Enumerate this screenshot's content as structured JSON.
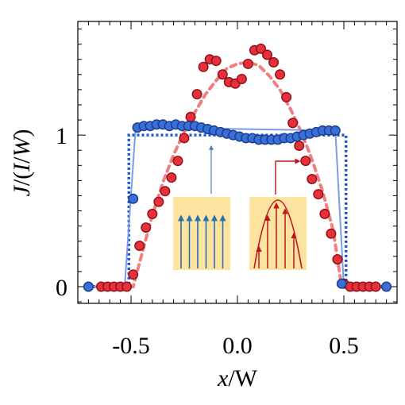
{
  "chart_data": {
    "type": "scatter",
    "xlabel": {
      "italic": "x",
      "rest": "/W"
    },
    "ylabel": {
      "italic_j": "J",
      "mid": "/(",
      "italic_i": "I",
      "slash": "/",
      "italic_w": "W",
      "end": ")"
    },
    "xlim": [
      -0.75,
      0.75
    ],
    "ylim": [
      -0.11,
      1.75
    ],
    "xticks": [
      -0.5,
      0.0,
      0.5
    ],
    "xtick_labels": [
      "-0.5",
      "0.0",
      "0.5"
    ],
    "yticks": [
      0,
      1
    ],
    "ytick_labels": [
      "0",
      "1"
    ],
    "grid": false,
    "series": [
      {
        "marker_color": "#3a6fd8",
        "fit_color": "#1f55d0",
        "fit_style": "dotted",
        "x": [
          -0.7,
          -0.49,
          -0.47,
          -0.44,
          -0.41,
          -0.38,
          -0.35,
          -0.32,
          -0.29,
          -0.26,
          -0.23,
          -0.2,
          -0.17,
          -0.14,
          -0.11,
          -0.08,
          -0.05,
          -0.02,
          0.01,
          0.04,
          0.07,
          0.1,
          0.13,
          0.16,
          0.19,
          0.22,
          0.25,
          0.28,
          0.31,
          0.34,
          0.37,
          0.4,
          0.43,
          0.46,
          0.49,
          0.7
        ],
        "y": [
          0.0,
          0.58,
          1.05,
          1.06,
          1.06,
          1.07,
          1.07,
          1.06,
          1.07,
          1.06,
          1.06,
          1.06,
          1.05,
          1.04,
          1.03,
          1.02,
          1.01,
          1.0,
          0.99,
          0.98,
          0.98,
          0.97,
          0.97,
          0.97,
          0.97,
          0.98,
          0.98,
          0.99,
          1.0,
          1.01,
          1.02,
          1.03,
          1.03,
          1.03,
          0.02,
          0.0
        ],
        "line_x": [
          -0.7,
          -0.53,
          -0.48,
          -0.44,
          0.46,
          0.5,
          0.7
        ],
        "line_y": [
          0.0,
          0.0,
          1.02,
          1.05,
          1.03,
          0.0,
          0.0
        ],
        "fit_x": [
          -0.7,
          -0.51,
          -0.51,
          0.51,
          0.51,
          0.7
        ],
        "fit_y": [
          0.0,
          0.0,
          1.0,
          1.0,
          0.0,
          0.0
        ]
      },
      {
        "marker_color": "#e8303a",
        "fit_color": "#f08080",
        "fit_style": "dashed",
        "x": [
          -0.64,
          -0.61,
          -0.58,
          -0.55,
          -0.52,
          -0.49,
          -0.46,
          -0.43,
          -0.4,
          -0.37,
          -0.34,
          -0.31,
          -0.28,
          -0.25,
          -0.22,
          -0.19,
          -0.16,
          -0.13,
          -0.1,
          -0.07,
          -0.04,
          -0.01,
          0.02,
          0.05,
          0.08,
          0.11,
          0.14,
          0.17,
          0.2,
          0.23,
          0.26,
          0.29,
          0.32,
          0.35,
          0.38,
          0.41,
          0.44,
          0.47,
          0.5,
          0.53,
          0.56,
          0.59,
          0.62,
          0.65
        ],
        "y": [
          0.0,
          0.0,
          0.0,
          0.0,
          0.0,
          0.08,
          0.27,
          0.39,
          0.48,
          0.56,
          0.63,
          0.72,
          0.83,
          0.98,
          1.12,
          1.27,
          1.45,
          1.5,
          1.49,
          1.4,
          1.35,
          1.34,
          1.37,
          1.47,
          1.56,
          1.57,
          1.53,
          1.48,
          1.4,
          1.25,
          1.08,
          0.93,
          0.83,
          0.71,
          0.61,
          0.48,
          0.35,
          0.18,
          0.02,
          0.0,
          0.0,
          0.0,
          0.0,
          0.0
        ],
        "fit_x": [
          -0.7,
          -0.49,
          -0.45,
          -0.4,
          -0.35,
          -0.3,
          -0.25,
          -0.2,
          -0.15,
          -0.1,
          -0.05,
          0.0,
          0.05,
          0.1,
          0.15,
          0.2,
          0.25,
          0.3,
          0.35,
          0.4,
          0.45,
          0.49,
          0.7
        ],
        "fit_y": [
          0.0,
          0.0,
          0.21,
          0.47,
          0.69,
          0.87,
          1.02,
          1.15,
          1.27,
          1.36,
          1.44,
          1.47,
          1.48,
          1.46,
          1.39,
          1.3,
          1.17,
          1.02,
          0.84,
          0.63,
          0.37,
          0.0,
          0.0
        ]
      }
    ],
    "inset": {
      "panel_color": "#fde3a0",
      "blue_color": "#2a6fb0",
      "red_color": "#c0131d",
      "annotation_arrow_color": "#4a7fc0"
    }
  }
}
